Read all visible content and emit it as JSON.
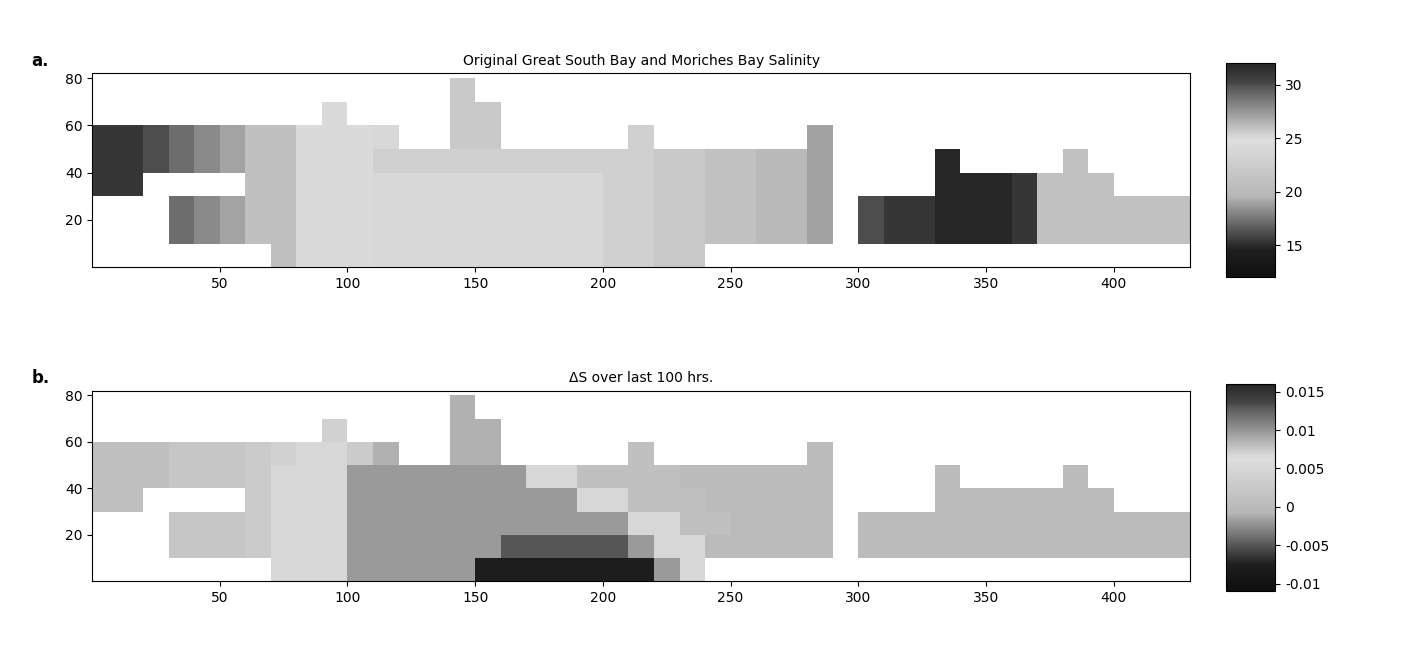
{
  "chart_data": [
    {
      "type": "heatmap",
      "title": "Original Great South Bay and Moriches Bay Salinity",
      "annotations": [
        "a."
      ],
      "x": [
        5,
        15,
        25,
        35,
        45,
        55,
        65,
        75,
        85,
        95,
        105,
        115,
        125,
        135,
        145,
        155,
        165,
        175,
        185,
        195,
        205,
        215,
        225,
        235,
        245,
        255,
        265,
        275,
        285,
        295,
        305,
        315,
        325,
        335,
        345,
        355,
        365,
        375,
        385,
        395,
        405,
        415,
        425
      ],
      "y": [
        5,
        15,
        25,
        35,
        45,
        55,
        65,
        75
      ],
      "cells": [
        [
          null,
          null,
          null,
          null,
          null,
          null,
          null,
          26,
          25,
          25,
          25,
          24,
          24,
          24,
          24,
          24,
          24,
          24,
          24,
          24,
          23,
          23,
          22,
          22,
          null,
          null,
          null,
          null,
          null,
          null,
          null,
          null,
          null,
          null,
          null,
          null,
          null,
          null,
          null,
          null,
          null,
          null,
          null
        ],
        [
          null,
          null,
          null,
          29,
          28,
          27,
          26,
          26,
          25,
          25,
          25,
          24,
          24,
          24,
          24,
          24,
          24,
          24,
          24,
          24,
          23,
          23,
          22,
          22,
          21,
          21,
          20,
          20,
          19,
          null,
          30,
          31,
          31,
          32,
          32,
          32,
          31,
          21,
          21,
          21,
          21,
          21,
          21
        ],
        [
          null,
          null,
          null,
          29,
          28,
          27,
          26,
          26,
          25,
          25,
          25,
          24,
          24,
          24,
          24,
          24,
          24,
          24,
          24,
          24,
          23,
          23,
          22,
          22,
          21,
          21,
          20,
          20,
          19,
          null,
          30,
          31,
          31,
          32,
          32,
          32,
          31,
          21,
          21,
          21,
          21,
          21,
          21
        ],
        [
          31,
          31,
          null,
          null,
          null,
          null,
          26,
          26,
          25,
          25,
          25,
          24,
          24,
          24,
          24,
          24,
          24,
          24,
          24,
          24,
          23,
          23,
          22,
          22,
          21,
          21,
          20,
          20,
          19,
          null,
          null,
          null,
          null,
          32,
          32,
          32,
          31,
          21,
          21,
          21,
          null,
          null,
          null
        ],
        [
          31,
          31,
          30,
          29,
          28,
          27,
          26,
          26,
          25,
          25,
          25,
          23,
          23,
          23,
          23,
          23,
          23,
          23,
          23,
          23,
          23,
          23,
          22,
          22,
          21,
          21,
          20,
          20,
          19,
          null,
          null,
          null,
          null,
          32,
          null,
          null,
          null,
          null,
          21,
          null,
          null,
          null,
          null
        ],
        [
          31,
          31,
          30,
          29,
          28,
          27,
          26,
          26,
          25,
          25,
          25,
          24,
          null,
          null,
          22,
          22,
          null,
          null,
          null,
          null,
          null,
          23,
          null,
          null,
          null,
          null,
          null,
          null,
          19,
          null,
          null,
          null,
          null,
          null,
          null,
          null,
          null,
          null,
          null,
          null,
          null,
          null,
          null
        ],
        [
          null,
          null,
          null,
          null,
          null,
          null,
          null,
          null,
          null,
          25,
          null,
          null,
          null,
          null,
          22,
          22,
          null,
          null,
          null,
          null,
          null,
          null,
          null,
          null,
          null,
          null,
          null,
          null,
          null,
          null,
          null,
          null,
          null,
          null,
          null,
          null,
          null,
          null,
          null,
          null,
          null,
          null,
          null
        ],
        [
          null,
          null,
          null,
          null,
          null,
          null,
          null,
          null,
          null,
          null,
          null,
          null,
          null,
          null,
          22,
          null,
          null,
          null,
          null,
          null,
          null,
          null,
          null,
          null,
          null,
          null,
          null,
          null,
          null,
          null,
          null,
          null,
          null,
          null,
          null,
          null,
          null,
          null,
          null,
          null,
          null,
          null,
          null
        ]
      ],
      "xlim": [
        0,
        430
      ],
      "ylim": [
        0,
        82
      ],
      "xticks": [
        50,
        100,
        150,
        200,
        250,
        300,
        350,
        400
      ],
      "yticks": [
        20,
        40,
        60,
        80
      ],
      "colorbar_range": [
        12,
        32
      ],
      "colorbar_ticks": [
        15,
        20,
        25,
        30
      ]
    },
    {
      "type": "heatmap",
      "title": "ΔS over last 100 hrs.",
      "annotations": [
        "b."
      ],
      "x": [
        5,
        15,
        25,
        35,
        45,
        55,
        65,
        75,
        85,
        95,
        105,
        115,
        125,
        135,
        145,
        155,
        165,
        175,
        185,
        195,
        205,
        215,
        225,
        235,
        245,
        255,
        265,
        275,
        285,
        295,
        305,
        315,
        325,
        335,
        345,
        355,
        365,
        375,
        385,
        395,
        405,
        415,
        425
      ],
      "y": [
        5,
        15,
        25,
        35,
        45,
        55,
        65,
        75
      ],
      "cells": [
        [
          null,
          null,
          null,
          null,
          null,
          null,
          null,
          0.005,
          0.005,
          0.005,
          -0.002,
          -0.002,
          -0.002,
          -0.002,
          -0.002,
          -0.008,
          -0.008,
          -0.008,
          -0.008,
          -0.008,
          -0.008,
          -0.008,
          -0.002,
          0.005,
          null,
          null,
          null,
          null,
          null,
          null,
          null,
          null,
          null,
          null,
          null,
          null,
          null,
          null,
          null,
          null,
          null,
          null,
          null
        ],
        [
          null,
          null,
          null,
          0.002,
          0.002,
          0.002,
          0.003,
          0.005,
          0.005,
          0.005,
          -0.002,
          -0.002,
          -0.002,
          -0.002,
          -0.002,
          -0.002,
          -0.005,
          -0.005,
          -0.005,
          -0.005,
          -0.005,
          -0.002,
          0.005,
          0.005,
          0.0,
          0.0,
          0.0,
          0.0,
          0.0,
          null,
          0.0,
          0.0,
          0.0,
          0.0,
          0.0,
          0.0,
          0.0,
          0.0,
          0.0,
          0.0,
          0.0,
          0.0,
          0.0
        ],
        [
          null,
          null,
          null,
          0.002,
          0.002,
          0.002,
          0.003,
          0.005,
          0.005,
          0.005,
          -0.002,
          -0.002,
          -0.002,
          -0.002,
          -0.002,
          -0.002,
          -0.002,
          -0.002,
          -0.002,
          -0.002,
          -0.002,
          0.005,
          0.005,
          0.001,
          0.001,
          0.0,
          0.0,
          0.0,
          0.0,
          null,
          0.0,
          0.0,
          0.0,
          0.0,
          0.0,
          0.0,
          0.0,
          0.0,
          0.0,
          0.0,
          0.0,
          0.0,
          0.0
        ],
        [
          0.001,
          0.001,
          null,
          null,
          null,
          null,
          0.003,
          0.005,
          0.005,
          0.005,
          -0.002,
          -0.002,
          -0.002,
          -0.002,
          -0.002,
          -0.002,
          -0.002,
          -0.002,
          -0.002,
          0.005,
          0.005,
          0.001,
          0.001,
          0.001,
          0.0,
          0.0,
          0.0,
          0.0,
          0.0,
          null,
          null,
          null,
          null,
          0.0,
          0.0,
          0.0,
          0.0,
          0.0,
          0.0,
          0.0,
          null,
          null,
          null
        ],
        [
          0.001,
          0.001,
          0.001,
          0.002,
          0.002,
          0.002,
          0.003,
          0.005,
          0.005,
          0.005,
          -0.002,
          -0.002,
          -0.002,
          -0.002,
          -0.002,
          -0.002,
          -0.002,
          0.005,
          0.005,
          0.001,
          0.001,
          0.001,
          0.001,
          0.0,
          0.0,
          0.0,
          0.0,
          0.0,
          0.0,
          null,
          null,
          null,
          null,
          0.0,
          null,
          null,
          null,
          null,
          0.0,
          null,
          null,
          null,
          null
        ],
        [
          0.001,
          0.001,
          0.001,
          0.002,
          0.002,
          0.002,
          0.003,
          0.004,
          0.005,
          0.005,
          0.003,
          -0.001,
          null,
          null,
          -0.001,
          -0.001,
          null,
          null,
          null,
          null,
          null,
          0.001,
          null,
          null,
          null,
          null,
          null,
          null,
          0.0,
          null,
          null,
          null,
          null,
          null,
          null,
          null,
          null,
          null,
          null,
          null,
          null,
          null,
          null
        ],
        [
          null,
          null,
          null,
          null,
          null,
          null,
          null,
          null,
          null,
          0.004,
          null,
          null,
          null,
          null,
          -0.001,
          -0.001,
          null,
          null,
          null,
          null,
          null,
          null,
          null,
          null,
          null,
          null,
          null,
          null,
          null,
          null,
          null,
          null,
          null,
          null,
          null,
          null,
          null,
          null,
          null,
          null,
          null,
          null,
          null
        ],
        [
          null,
          null,
          null,
          null,
          null,
          null,
          null,
          null,
          null,
          null,
          null,
          null,
          null,
          null,
          -0.001,
          null,
          null,
          null,
          null,
          null,
          null,
          null,
          null,
          null,
          null,
          null,
          null,
          null,
          null,
          null,
          null,
          null,
          null,
          null,
          null,
          null,
          null,
          null,
          null,
          null,
          null,
          null,
          null
        ]
      ],
      "xlim": [
        0,
        430
      ],
      "ylim": [
        0,
        82
      ],
      "xticks": [
        50,
        100,
        150,
        200,
        250,
        300,
        350,
        400
      ],
      "yticks": [
        20,
        40,
        60,
        80
      ],
      "colorbar_range": [
        -0.011,
        0.016
      ],
      "colorbar_ticks": [
        -0.01,
        -0.005,
        0,
        0.005,
        0.01,
        0.015
      ]
    }
  ]
}
